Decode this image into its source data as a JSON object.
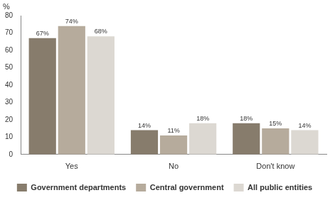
{
  "chart_data": {
    "type": "bar",
    "y_label": "%",
    "categories": [
      "Yes",
      "No",
      "Don't know"
    ],
    "series": [
      {
        "name": "Government departments",
        "color": "#877c6c",
        "values": [
          67,
          14,
          18
        ],
        "value_labels": [
          "67%",
          "14%",
          "18%"
        ]
      },
      {
        "name": "Central government",
        "color": "#b6ab9c",
        "values": [
          74,
          11,
          15
        ],
        "value_labels": [
          "74%",
          "11%",
          "15%"
        ]
      },
      {
        "name": "All public entities",
        "color": "#dcd8d2",
        "values": [
          68,
          18,
          14
        ],
        "value_labels": [
          "68%",
          "18%",
          "14%"
        ]
      }
    ],
    "ylim": [
      0,
      80
    ],
    "yticks": [
      0,
      10,
      20,
      30,
      40,
      50,
      60,
      70,
      80
    ],
    "grid": false,
    "legend": "bottom",
    "data_labels": true
  }
}
